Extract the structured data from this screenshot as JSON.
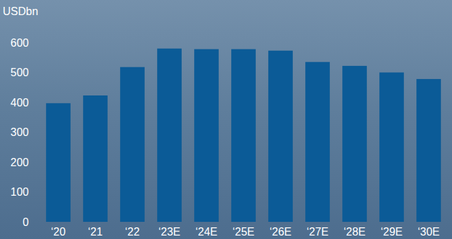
{
  "chart_data": {
    "type": "bar",
    "y_label": "USDbn",
    "categories": [
      "‘20",
      "‘21",
      "‘22",
      "‘23E",
      "‘24E",
      "‘25E",
      "‘26E",
      "‘27E",
      "‘28E",
      "‘29E",
      "‘30E"
    ],
    "values": [
      397,
      423,
      518,
      580,
      578,
      578,
      573,
      535,
      522,
      500,
      478
    ],
    "color": "#0b5b97",
    "ylim": [
      0,
      600
    ],
    "yticks": [
      0,
      100,
      200,
      300,
      400,
      500,
      600
    ],
    "grid": false
  }
}
